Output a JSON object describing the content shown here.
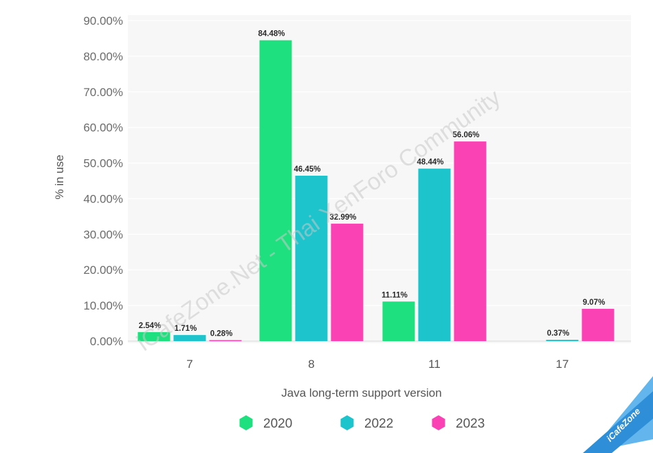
{
  "chart_data": {
    "type": "bar",
    "categories": [
      "7",
      "8",
      "11",
      "17"
    ],
    "series": [
      {
        "name": "2020",
        "color": "#1fe07e",
        "values": [
          2.54,
          84.48,
          11.11,
          null
        ],
        "labels": [
          "2.54%",
          "84.48%",
          "11.11%",
          ""
        ]
      },
      {
        "name": "2022",
        "color": "#1ec4cc",
        "values": [
          1.71,
          46.45,
          48.44,
          0.37
        ],
        "labels": [
          "1.71%",
          "46.45%",
          "48.44%",
          "0.37%"
        ]
      },
      {
        "name": "2023",
        "color": "#fa42b4",
        "values": [
          0.28,
          32.99,
          56.06,
          9.07
        ],
        "labels": [
          "0.28%",
          "32.99%",
          "56.06%",
          "9.07%"
        ]
      }
    ],
    "xlabel": "Java long-term support version",
    "ylabel": "% in use",
    "ylim": [
      0,
      90
    ],
    "yticks": [
      "0.00%",
      "10.00%",
      "20.00%",
      "30.00%",
      "40.00%",
      "50.00%",
      "60.00%",
      "70.00%",
      "80.00%",
      "90.00%"
    ],
    "grid": true,
    "legend_position": "bottom-center"
  },
  "watermark": "iCafeZone.Net - Thai XenForo Community",
  "corner_badge": "iCafeZone"
}
